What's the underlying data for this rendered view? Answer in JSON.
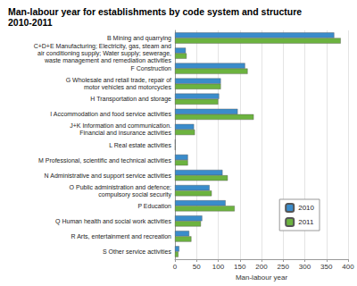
{
  "chart_data": {
    "type": "bar",
    "orientation": "horizontal",
    "title": "Man-labour year for establishments by code system and structure\n2010-2011",
    "x_label": "Man-labour year",
    "categories": [
      "B Mining and quarrying",
      "C+D+E Manufacturing; Electricity, gas, steam and\nair conditioning supply; Water supply; sewerage,\nwaste management and remediation activities",
      "F Construction",
      "G Wholesale and retail trade, repair of\nmotor vehicles and motorcycles",
      "H Transportation and storage",
      "I Accommodation and food service activities",
      "J+K Information and communication.\nFinancial and insurance activities",
      "L Real estate activities",
      "M Professional, scientific and technical activities",
      "N Administrative and support service activities",
      "O Public administration and defence;\ncompulsory social security",
      "P Education",
      "Q Human health and social work activities",
      "R Arts, entertainment and recreation",
      "S Other service activities"
    ],
    "series": [
      {
        "name": "2010",
        "color": "#3a8ccb",
        "values": [
          368,
          25,
          162,
          106,
          102,
          145,
          44,
          1,
          30,
          110,
          80,
          117,
          63,
          33,
          10
        ]
      },
      {
        "name": "2011",
        "color": "#6cb33f",
        "values": [
          383,
          27,
          168,
          106,
          100,
          182,
          46,
          1,
          30,
          122,
          85,
          138,
          60,
          38,
          8
        ]
      }
    ],
    "xlim": [
      0,
      400
    ],
    "xticks": [
      0,
      50,
      100,
      150,
      200,
      250,
      300,
      350,
      400
    ],
    "grid": true,
    "legend": "lower right"
  }
}
